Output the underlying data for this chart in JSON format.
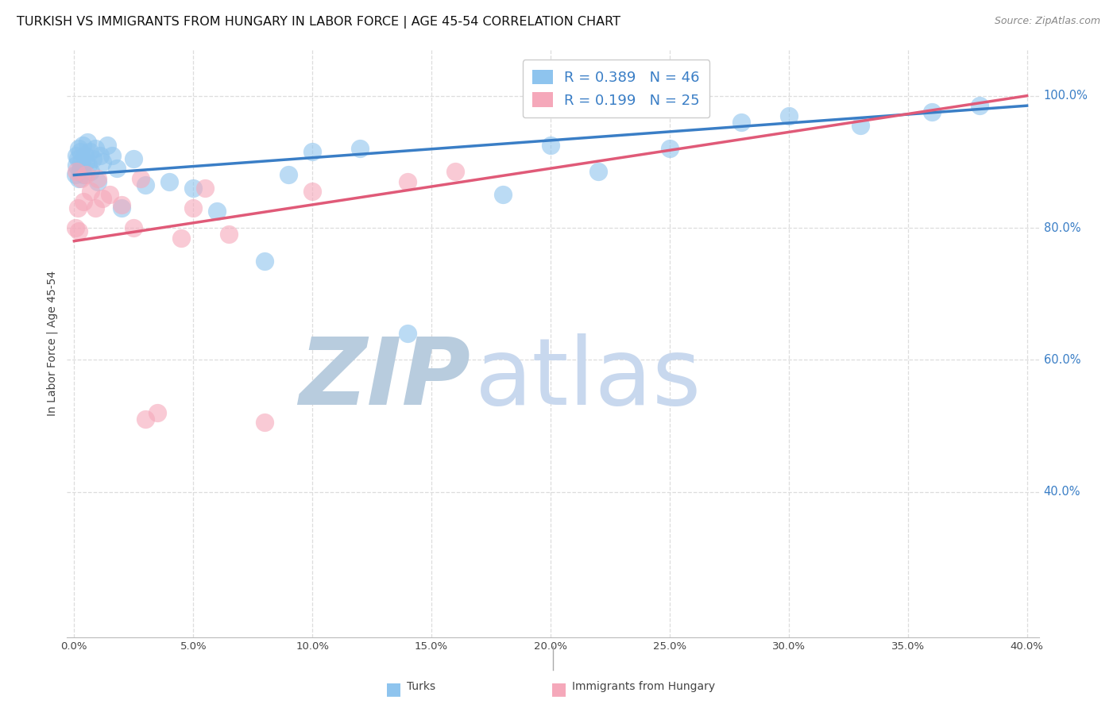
{
  "title": "TURKISH VS IMMIGRANTS FROM HUNGARY IN LABOR FORCE | AGE 45-54 CORRELATION CHART",
  "source": "Source: ZipAtlas.com",
  "ylabel": "In Labor Force | Age 45-54",
  "x_tick_values": [
    0.0,
    5.0,
    10.0,
    15.0,
    20.0,
    25.0,
    30.0,
    35.0,
    40.0
  ],
  "x_tick_labels": [
    "0.0%",
    "5.0%",
    "10.0%",
    "15.0%",
    "20.0%",
    "25.0%",
    "30.0%",
    "35.0%",
    "40.0%"
  ],
  "y_tick_values": [
    40.0,
    60.0,
    80.0,
    100.0
  ],
  "y_tick_labels": [
    "40.0%",
    "60.0%",
    "80.0%",
    "100.0%"
  ],
  "xlim": [
    -0.3,
    40.5
  ],
  "ylim": [
    18.0,
    107.0
  ],
  "blue_color": "#8EC4EE",
  "pink_color": "#F5A8BA",
  "blue_line_color": "#3A7EC6",
  "pink_line_color": "#E05A78",
  "legend_r_blue": "0.389",
  "legend_n_blue": "46",
  "legend_r_pink": "0.199",
  "legend_n_pink": "25",
  "watermark_zip": "ZIP",
  "watermark_atlas": "atlas",
  "watermark_color": "#C8D8EE",
  "grid_color": "#DDDDDD",
  "blue_x": [
    0.05,
    0.08,
    0.1,
    0.15,
    0.18,
    0.2,
    0.22,
    0.25,
    0.28,
    0.3,
    0.35,
    0.4,
    0.45,
    0.5,
    0.55,
    0.6,
    0.65,
    0.7,
    0.8,
    0.9,
    1.0,
    1.1,
    1.2,
    1.4,
    1.6,
    1.8,
    2.0,
    2.5,
    3.0,
    4.0,
    5.0,
    6.0,
    8.0,
    9.0,
    10.0,
    12.0,
    14.0,
    18.0,
    20.0,
    22.0,
    25.0,
    28.0,
    30.0,
    33.0,
    36.0,
    38.0
  ],
  "blue_y": [
    88.0,
    89.5,
    91.0,
    90.5,
    87.5,
    92.0,
    88.5,
    91.5,
    89.0,
    90.0,
    92.5,
    88.0,
    91.0,
    90.0,
    93.0,
    89.5,
    91.5,
    88.5,
    90.5,
    92.0,
    87.0,
    91.0,
    90.0,
    92.5,
    91.0,
    89.0,
    83.0,
    90.5,
    86.5,
    87.0,
    86.0,
    82.5,
    75.0,
    88.0,
    91.5,
    92.0,
    64.0,
    85.0,
    92.5,
    88.5,
    92.0,
    96.0,
    97.0,
    95.5,
    97.5,
    98.5
  ],
  "pink_x": [
    0.05,
    0.1,
    0.15,
    0.2,
    0.3,
    0.4,
    0.5,
    0.7,
    0.9,
    1.0,
    1.2,
    1.5,
    2.0,
    2.5,
    2.8,
    3.0,
    3.5,
    4.5,
    5.0,
    5.5,
    6.5,
    8.0,
    10.0,
    14.0,
    16.0
  ],
  "pink_y": [
    80.0,
    88.5,
    83.0,
    79.5,
    87.5,
    84.0,
    88.0,
    85.5,
    83.0,
    87.5,
    84.5,
    85.0,
    83.5,
    80.0,
    87.5,
    51.0,
    52.0,
    78.5,
    83.0,
    86.0,
    79.0,
    50.5,
    85.5,
    87.0,
    88.5
  ],
  "legend_bottom_labels": [
    "Turks",
    "Immigrants from Hungary"
  ],
  "title_fontsize": 11.5,
  "source_fontsize": 9,
  "axis_label_fontsize": 10,
  "marker_size": 280
}
